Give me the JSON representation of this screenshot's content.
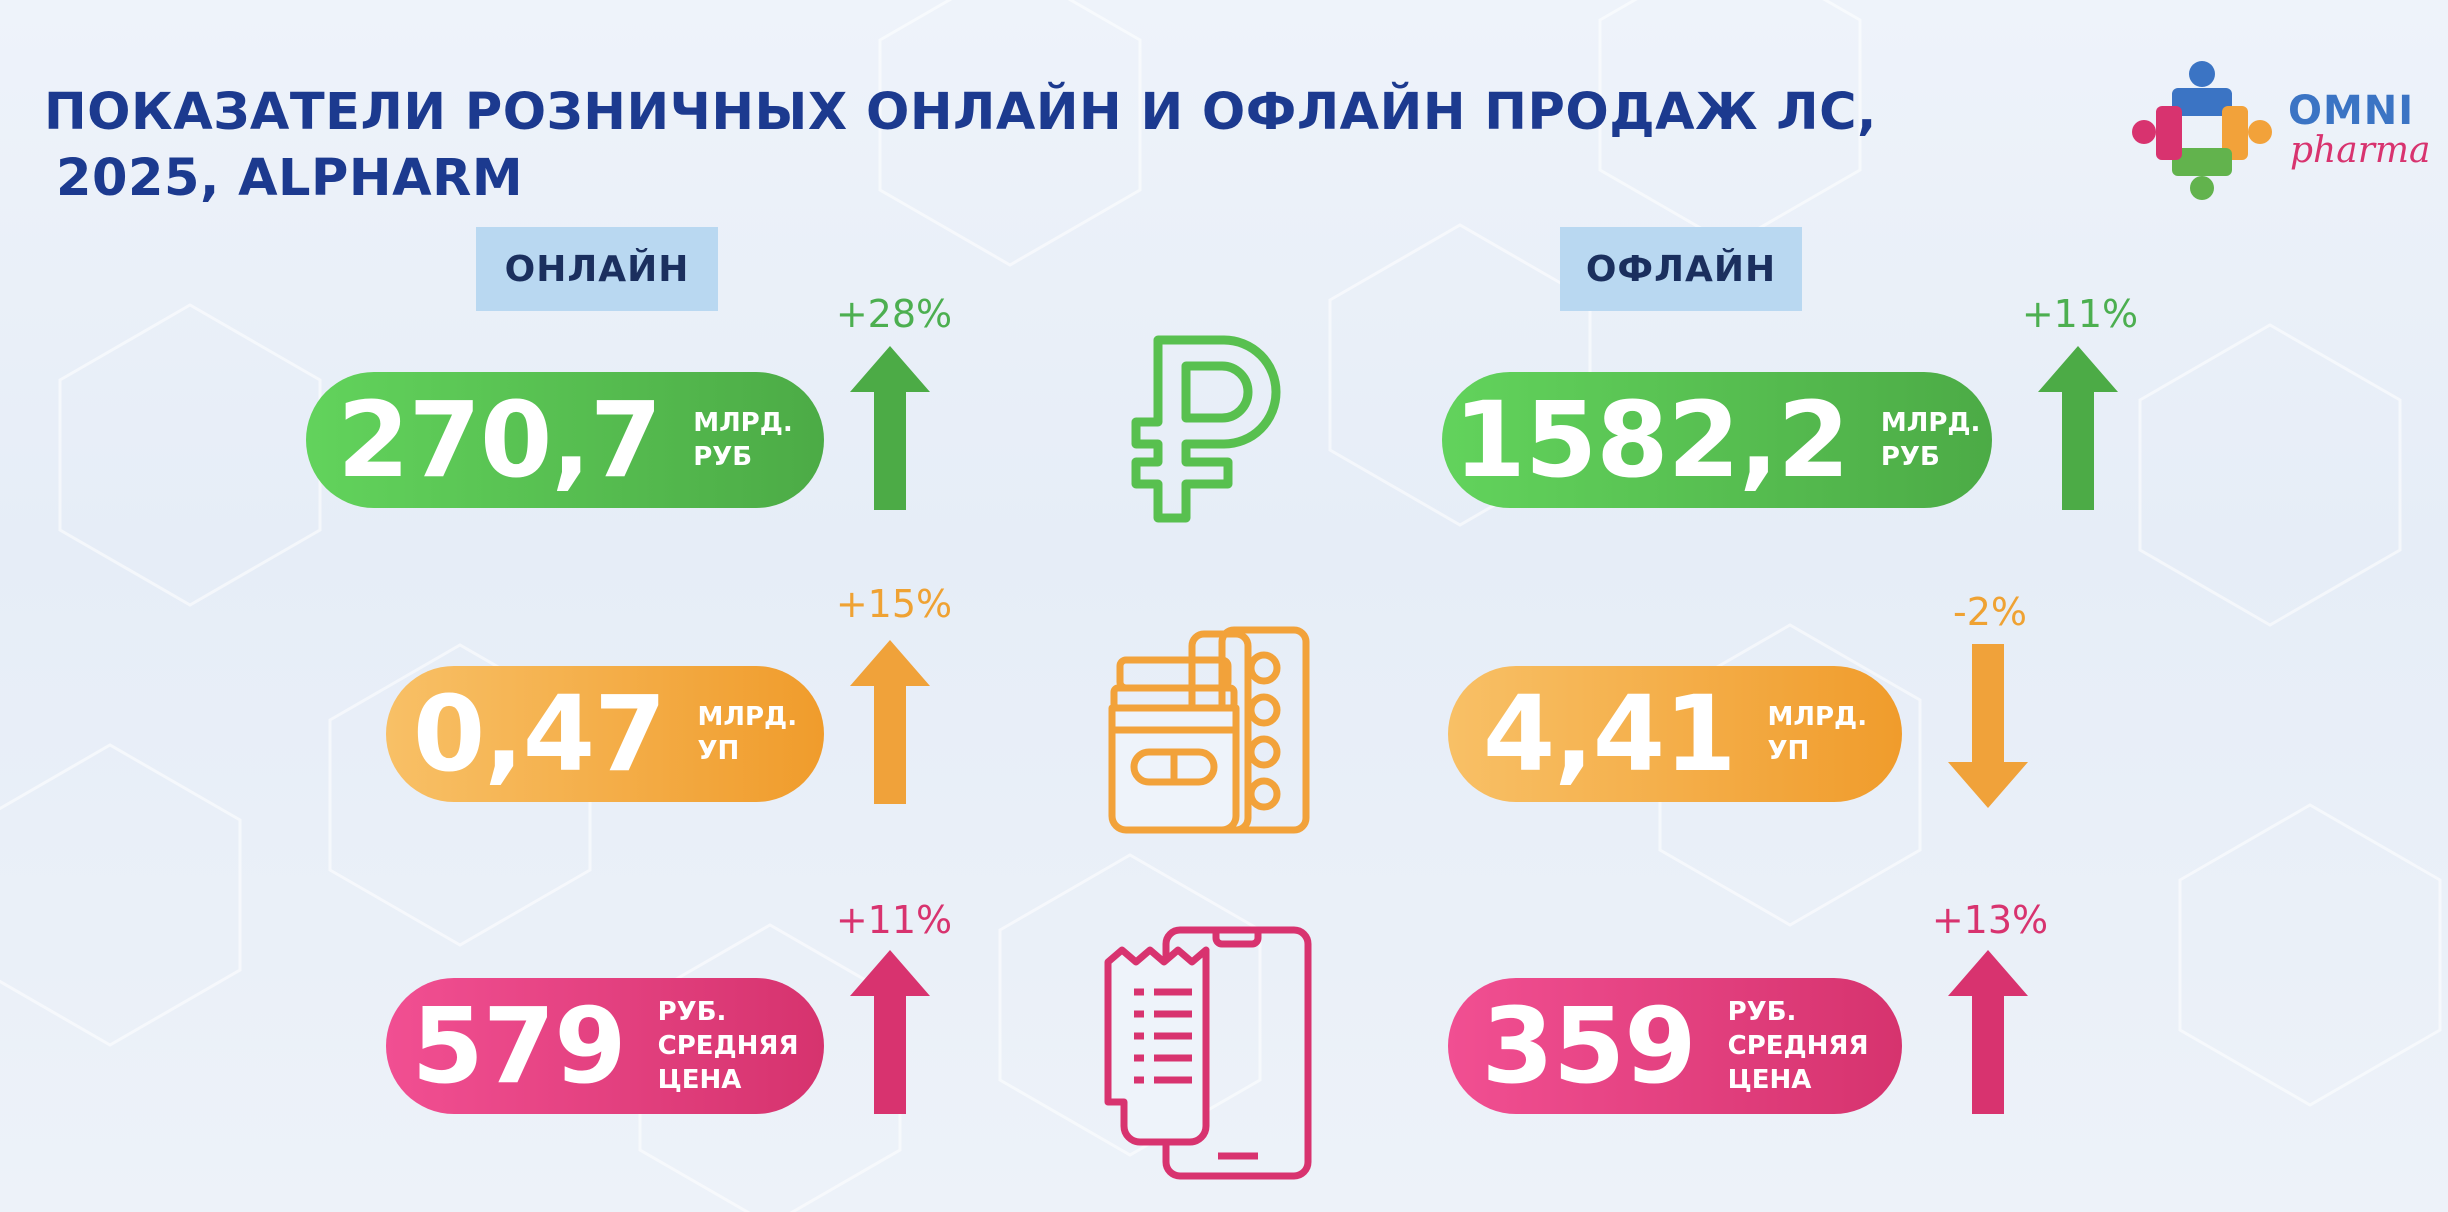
{
  "title": {
    "line1": "ПОКАЗАТЕЛИ РОЗНИЧНЫХ ОНЛАЙН И ОФЛАЙН ПРОДАЖ ЛС,",
    "line2": "2025, ALPHARM"
  },
  "logo": {
    "omni": "OMNI",
    "pharma": "pharma"
  },
  "online": {
    "label": "ОНЛАЙН",
    "revenue": {
      "value": "270,7",
      "unit1": "МЛРД.",
      "unit2": "РУБ",
      "change": "+28%",
      "direction": "up"
    },
    "packs": {
      "value": "0,47",
      "unit1": "МЛРД.",
      "unit2": "УП",
      "change": "+15%",
      "direction": "up"
    },
    "price": {
      "value": "579",
      "unit1": "РУБ.",
      "unit2": "СРЕДНЯЯ",
      "unit3": "ЦЕНА",
      "change": "+11%",
      "direction": "up"
    }
  },
  "offline": {
    "label": "ОФЛАЙН",
    "revenue": {
      "value": "1582,2",
      "unit1": "МЛРД.",
      "unit2": "РУБ",
      "change": "+11%",
      "direction": "up"
    },
    "packs": {
      "value": "4,41",
      "unit1": "МЛРД.",
      "unit2": "УП",
      "change": "-2%",
      "direction": "down"
    },
    "price": {
      "value": "359",
      "unit1": "РУБ.",
      "unit2": "СРЕДНЯЯ",
      "unit3": "ЦЕНА",
      "change": "+13%",
      "direction": "up"
    }
  },
  "icons": {
    "revenue": "ruble-icon",
    "packs": "medicine-jar-blister-icon",
    "price": "phone-receipt-icon"
  },
  "colors": {
    "title": "#1c3a8f",
    "green": "#4cab46",
    "orange": "#f09c2c",
    "pink": "#d6336e",
    "label_bg": "#b9d8f1"
  }
}
